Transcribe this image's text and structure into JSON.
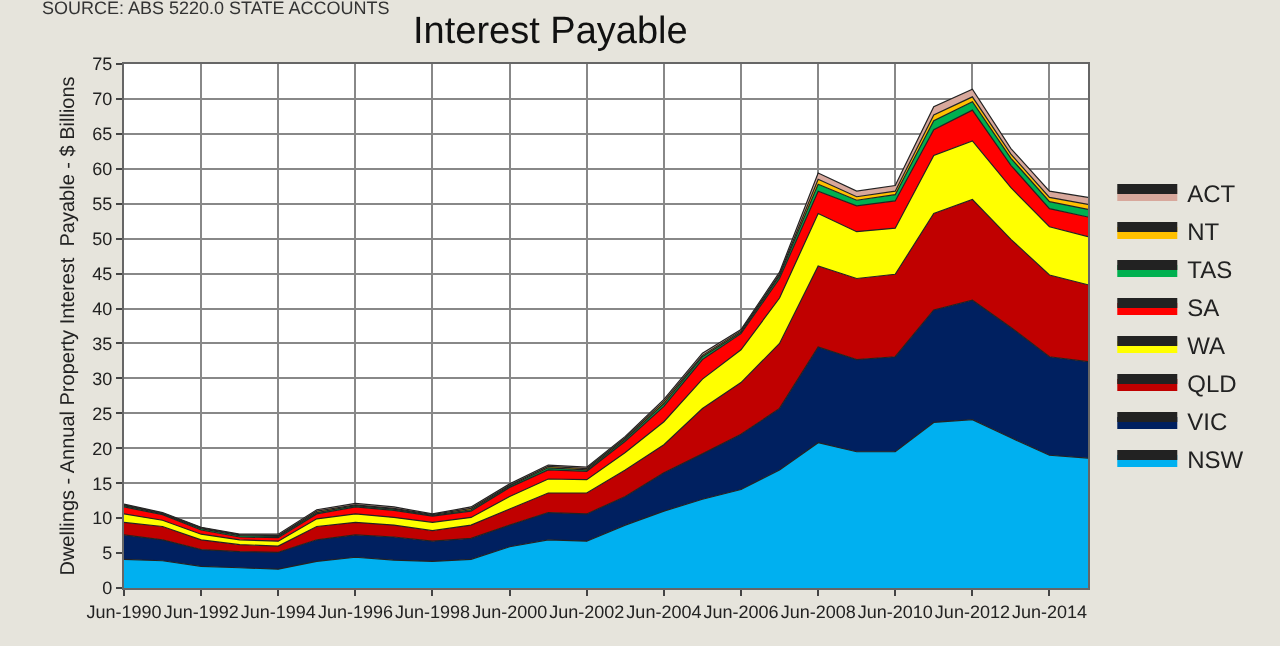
{
  "chart_data": {
    "type": "area",
    "stacked": true,
    "title": "Interest Payable",
    "ylabel": "Dwellings - Annual Property Interest  Payable - $ Billions",
    "annotations": [
      "SOURCE: ABS 5220.0 STATE ACCOUNTS"
    ],
    "x": [
      "1990-06",
      "1991-06",
      "1992-06",
      "1993-06",
      "1994-06",
      "1995-06",
      "1996-06",
      "1997-06",
      "1998-06",
      "1999-06",
      "2000-06",
      "2001-06",
      "2002-06",
      "2003-06",
      "2004-06",
      "2005-06",
      "2006-06",
      "2007-06",
      "2008-06",
      "2009-06",
      "2010-06",
      "2011-06",
      "2012-06",
      "2013-06",
      "2014-06",
      "2015-06"
    ],
    "xlim": [
      "1990-06",
      "2015-06"
    ],
    "xticks": [
      {
        "value": "1990-06",
        "label": "Jun-1990"
      },
      {
        "value": "1992-06",
        "label": "Jun-1992"
      },
      {
        "value": "1994-06",
        "label": "Jun-1994"
      },
      {
        "value": "1996-06",
        "label": "Jun-1996"
      },
      {
        "value": "1998-06",
        "label": "Jun-1998"
      },
      {
        "value": "2000-06",
        "label": "Jun-2000"
      },
      {
        "value": "2002-06",
        "label": "Jun-2002"
      },
      {
        "value": "2004-06",
        "label": "Jun-2004"
      },
      {
        "value": "2006-06",
        "label": "Jun-2006"
      },
      {
        "value": "2008-06",
        "label": "Jun-2008"
      },
      {
        "value": "2010-06",
        "label": "Jun-2010"
      },
      {
        "value": "2012-06",
        "label": "Jun-2012"
      },
      {
        "value": "2014-06",
        "label": "Jun-2014"
      }
    ],
    "ylim": [
      0,
      75
    ],
    "yticks": [
      0,
      5,
      10,
      15,
      20,
      25,
      30,
      35,
      40,
      45,
      50,
      55,
      60,
      65,
      70,
      75
    ],
    "grid": true,
    "legend": "right",
    "series": [
      {
        "name": "NSW",
        "color": "#00b0f0",
        "values": [
          4.1,
          3.9,
          3.1,
          2.9,
          2.7,
          3.8,
          4.4,
          4.0,
          3.8,
          4.1,
          5.9,
          6.9,
          6.7,
          9.0,
          11.0,
          12.7,
          14.1,
          16.9,
          20.8,
          19.5,
          19.5,
          23.7,
          24.1,
          21.5,
          19.0,
          18.6
        ]
      },
      {
        "name": "VIC",
        "color": "#002060",
        "values": [
          3.5,
          3.0,
          2.4,
          2.3,
          2.4,
          3.1,
          3.2,
          3.3,
          2.9,
          3.0,
          3.1,
          3.9,
          3.9,
          4.1,
          5.5,
          6.5,
          7.9,
          8.8,
          13.7,
          13.2,
          13.6,
          16.1,
          17.1,
          15.8,
          14.1,
          13.8
        ]
      },
      {
        "name": "QLD",
        "color": "#c00000",
        "values": [
          1.8,
          1.9,
          1.4,
          1.0,
          0.9,
          1.9,
          1.8,
          1.7,
          1.5,
          1.9,
          2.3,
          2.8,
          3.0,
          3.8,
          4.0,
          6.5,
          7.4,
          9.3,
          11.6,
          11.6,
          11.8,
          13.8,
          14.4,
          12.6,
          11.7,
          11.0
        ]
      },
      {
        "name": "WA",
        "color": "#ffff00",
        "values": [
          1.2,
          0.9,
          0.8,
          0.7,
          0.7,
          1.1,
          1.2,
          1.1,
          1.2,
          1.1,
          1.8,
          2.0,
          1.9,
          2.5,
          3.3,
          4.2,
          4.7,
          6.5,
          7.5,
          6.7,
          6.6,
          8.3,
          8.4,
          7.4,
          6.9,
          6.9
        ]
      },
      {
        "name": "SA",
        "color": "#ff0000",
        "values": [
          1.0,
          0.8,
          0.6,
          0.4,
          0.5,
          0.7,
          1.0,
          1.0,
          0.9,
          0.9,
          1.3,
          1.3,
          1.2,
          1.6,
          2.2,
          2.8,
          2.3,
          2.8,
          3.2,
          3.7,
          3.9,
          3.7,
          4.4,
          3.2,
          2.6,
          2.8
        ]
      },
      {
        "name": "TAS",
        "color": "#00b050",
        "values": [
          0.2,
          0.1,
          0.2,
          0.2,
          0.2,
          0.2,
          0.2,
          0.2,
          0.1,
          0.2,
          0.2,
          0.3,
          0.2,
          0.3,
          0.4,
          0.4,
          0.2,
          0.4,
          1.0,
          0.8,
          0.9,
          1.3,
          1.2,
          1.0,
          1.0,
          1.1
        ]
      },
      {
        "name": "NT",
        "color": "#ffc000",
        "values": [
          0.1,
          0.1,
          0.1,
          0.1,
          0.1,
          0.2,
          0.1,
          0.1,
          0.1,
          0.2,
          0.1,
          0.2,
          0.2,
          0.2,
          0.3,
          0.2,
          0.2,
          0.2,
          0.7,
          0.5,
          0.5,
          0.8,
          0.7,
          0.6,
          0.6,
          0.7
        ]
      },
      {
        "name": "ACT",
        "color": "#d8a89c",
        "values": [
          0.1,
          0.1,
          0.1,
          0.1,
          0.2,
          0.2,
          0.2,
          0.2,
          0.1,
          0.2,
          0.2,
          0.2,
          0.2,
          0.2,
          0.3,
          0.3,
          0.2,
          0.3,
          0.9,
          0.8,
          0.8,
          1.2,
          1.1,
          0.8,
          0.9,
          1.0
        ]
      }
    ]
  }
}
